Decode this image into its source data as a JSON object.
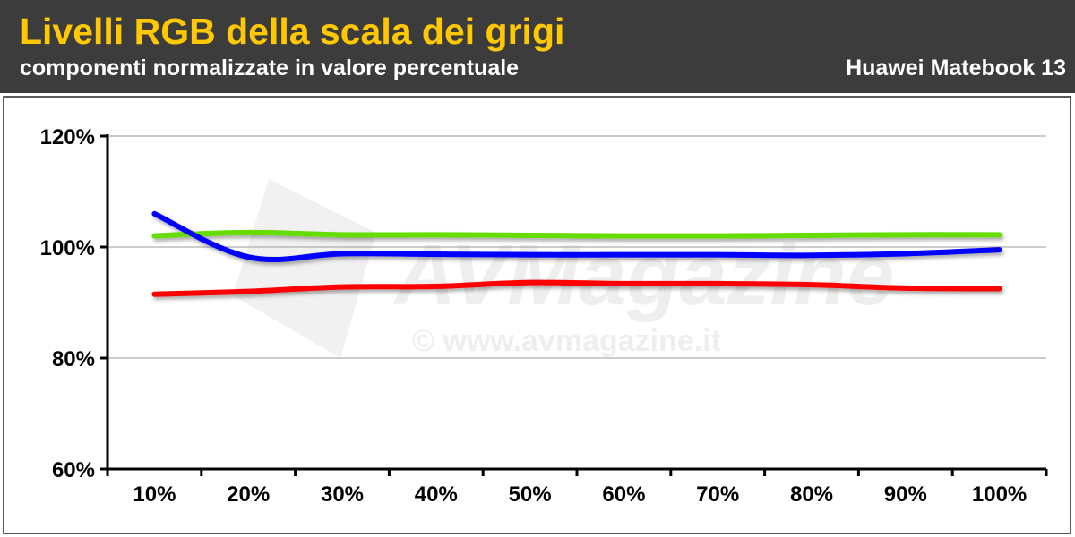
{
  "header": {
    "title": "Livelli RGB della scala dei grigi",
    "subtitle": "componenti normalizzate in valore percentuale",
    "device": "Huawei Matebook 13"
  },
  "watermark": {
    "logo_text": "AVMagazine",
    "url_text": "© www.avmagazine.it"
  },
  "colors": {
    "header_bg": "#3c3c3c",
    "title": "#ffc800",
    "red": "#ff0000",
    "green": "#66dd00",
    "blue": "#0000ff"
  },
  "chart_data": {
    "type": "line",
    "title": "Livelli RGB della scala dei grigi",
    "subtitle": "componenti normalizzate in valore percentuale",
    "categories": [
      "10%",
      "20%",
      "30%",
      "40%",
      "50%",
      "60%",
      "70%",
      "80%",
      "90%",
      "100%"
    ],
    "ylim": [
      60,
      120
    ],
    "yticks": [
      "60%",
      "80%",
      "100%",
      "120%"
    ],
    "grid": true,
    "series": [
      {
        "color": "#66dd00",
        "values": [
          102.0,
          102.6,
          102.2,
          102.2,
          102.1,
          102.0,
          102.0,
          102.1,
          102.2,
          102.2
        ]
      },
      {
        "color": "#0000ff",
        "values": [
          106.0,
          98.2,
          98.8,
          98.7,
          98.6,
          98.6,
          98.6,
          98.5,
          98.8,
          99.5
        ]
      },
      {
        "color": "#ff0000",
        "values": [
          91.5,
          92.0,
          92.8,
          92.9,
          93.6,
          93.4,
          93.4,
          93.2,
          92.6,
          92.5
        ]
      }
    ]
  }
}
